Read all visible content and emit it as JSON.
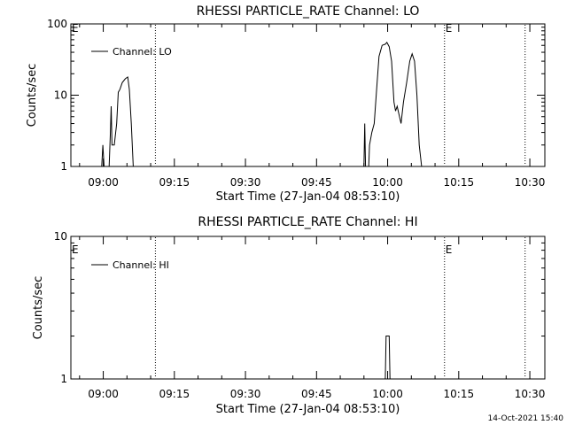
{
  "footer": {
    "stamp": "14-Oct-2021 15:40"
  },
  "chart_data": [
    {
      "type": "line",
      "title": "RHESSI PARTICLE_RATE Channel: LO",
      "xlabel": "Start Time (27-Jan-04 08:53:10)",
      "ylabel": "Counts/sec",
      "yscale": "log",
      "xlim": [
        "08:53:10",
        "10:33:10"
      ],
      "ylim": [
        1,
        100
      ],
      "x_ticks": [
        "09:00",
        "09:15",
        "09:30",
        "09:45",
        "10:00",
        "10:15",
        "10:30"
      ],
      "y_ticks": [
        "1",
        "10",
        "100"
      ],
      "legend": {
        "position": "top-left",
        "entries": [
          "Channel: LO"
        ]
      },
      "vlines": [
        "09:11",
        "10:12",
        "10:29"
      ],
      "annotations": [
        "E",
        "E"
      ],
      "series": [
        {
          "name": "Channel: LO",
          "points": [
            [
              "08:59:40",
              1
            ],
            [
              "08:59:55",
              2
            ],
            [
              "09:00:10",
              1
            ],
            [
              "09:01:15",
              1
            ],
            [
              "09:01:30",
              3
            ],
            [
              "09:01:40",
              7
            ],
            [
              "09:01:50",
              2
            ],
            [
              "09:02:20",
              2
            ],
            [
              "09:02:50",
              4
            ],
            [
              "09:03:10",
              11
            ],
            [
              "09:03:30",
              12
            ],
            [
              "09:04:00",
              15
            ],
            [
              "09:04:40",
              17
            ],
            [
              "09:05:10",
              18
            ],
            [
              "09:05:30",
              12
            ],
            [
              "09:05:55",
              4
            ],
            [
              "09:06:20",
              1
            ],
            [
              "09:55:00",
              1
            ],
            [
              "09:55:10",
              4
            ],
            [
              "09:55:20",
              1
            ],
            [
              "09:56:00",
              1
            ],
            [
              "09:56:10",
              2
            ],
            [
              "09:56:40",
              3
            ],
            [
              "09:57:10",
              4
            ],
            [
              "09:57:40",
              12
            ],
            [
              "09:58:10",
              35
            ],
            [
              "09:58:50",
              50
            ],
            [
              "09:59:30",
              52
            ],
            [
              "09:59:50",
              55
            ],
            [
              "10:00:20",
              48
            ],
            [
              "10:00:50",
              30
            ],
            [
              "10:01:20",
              8
            ],
            [
              "10:01:40",
              6
            ],
            [
              "10:02:00",
              7
            ],
            [
              "10:02:30",
              5
            ],
            [
              "10:02:50",
              4
            ],
            [
              "10:03:20",
              8
            ],
            [
              "10:04:00",
              15
            ],
            [
              "10:04:40",
              30
            ],
            [
              "10:05:10",
              38
            ],
            [
              "10:05:40",
              30
            ],
            [
              "10:06:10",
              10
            ],
            [
              "10:06:40",
              2
            ],
            [
              "10:07:10",
              1
            ]
          ]
        }
      ]
    },
    {
      "type": "line",
      "title": "RHESSI PARTICLE_RATE Channel: HI",
      "xlabel": "Start Time (27-Jan-04 08:53:10)",
      "ylabel": "Counts/sec",
      "yscale": "log",
      "xlim": [
        "08:53:10",
        "10:33:10"
      ],
      "ylim": [
        1,
        10
      ],
      "x_ticks": [
        "09:00",
        "09:15",
        "09:30",
        "09:45",
        "10:00",
        "10:15",
        "10:30"
      ],
      "y_ticks": [
        "1",
        "10"
      ],
      "legend": {
        "position": "top-left",
        "entries": [
          "Channel: HI"
        ]
      },
      "vlines": [
        "09:11",
        "10:12",
        "10:29"
      ],
      "annotations": [
        "E",
        "E"
      ],
      "series": [
        {
          "name": "Channel: HI",
          "points": [
            [
              "09:59:30",
              1
            ],
            [
              "09:59:40",
              2
            ],
            [
              "10:00:20",
              2
            ],
            [
              "10:00:30",
              1
            ]
          ]
        }
      ]
    }
  ]
}
